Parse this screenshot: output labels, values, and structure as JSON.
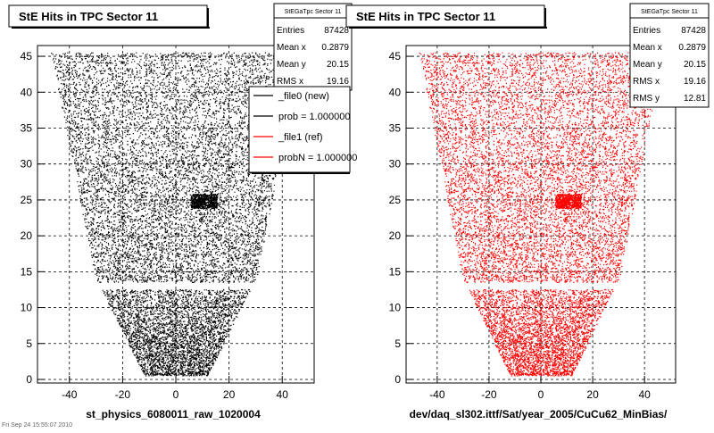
{
  "canvas_footer": {
    "stamp": "Fri Sep 24 15:55:07 2010"
  },
  "chart_data": [
    {
      "type": "scatter",
      "title": "StE Hits in TPC Sector 11",
      "xlabel": "st_physics_6080011_raw_1020004",
      "ylabel": "",
      "xlim": [
        -52,
        52
      ],
      "ylim": [
        -0.5,
        46.5
      ],
      "xticks": [
        -40,
        -20,
        0,
        20,
        40
      ],
      "yticks": [
        0,
        5,
        10,
        15,
        20,
        25,
        30,
        35,
        40,
        45
      ],
      "grid": true,
      "marker_color": "#000000",
      "stats": {
        "name": "StEGaTpc Sector 11",
        "rows": [
          {
            "label": "Entries",
            "value": "87428"
          },
          {
            "label": "Mean x",
            "value": "0.2879"
          },
          {
            "label": "Mean y",
            "value": "20.15"
          },
          {
            "label": "RMS x",
            "value": "19.16"
          }
        ]
      },
      "legend": {
        "placement": "top-right",
        "entries": [
          {
            "label": "_file0 (new)",
            "color": "#000000"
          },
          {
            "label": "prob = 1.000000",
            "color": "#000000"
          },
          {
            "label": "_file1 (ref)",
            "color": "#ff0000"
          },
          {
            "label": "probN = 1.000000",
            "color": "#ff0000"
          }
        ]
      },
      "hit_region": {
        "upper": {
          "y_range": [
            13.5,
            45.5
          ],
          "x_half_width_bottom": 30,
          "x_half_width_top": 47
        },
        "lower": {
          "y_range": [
            0.5,
            12.5
          ],
          "x_half_width_bottom": 12,
          "x_half_width_top": 28
        },
        "dense_block": {
          "x_range": [
            5.5,
            15.5
          ],
          "y_range": [
            23.8,
            25.8
          ]
        }
      },
      "entries": 87428
    },
    {
      "type": "scatter",
      "title": "StE Hits in TPC Sector 11",
      "xlabel": "dev/daq_sl302.ittf/Sat/year_2005/CuCu62_MinBias/",
      "ylabel": "",
      "xlim": [
        -52,
        52
      ],
      "ylim": [
        -0.5,
        46.5
      ],
      "xticks": [
        -40,
        -20,
        0,
        20,
        40
      ],
      "yticks": [
        0,
        5,
        10,
        15,
        20,
        25,
        30,
        35,
        40,
        45
      ],
      "grid": true,
      "marker_color": "#ff0000",
      "stats": {
        "name": "StEGaTpc Sector 11",
        "rows": [
          {
            "label": "Entries",
            "value": "87428"
          },
          {
            "label": "Mean x",
            "value": "0.2879"
          },
          {
            "label": "Mean y",
            "value": "20.15"
          },
          {
            "label": "RMS x",
            "value": "19.16"
          },
          {
            "label": "RMS y",
            "value": "12.81"
          }
        ]
      },
      "hit_region": {
        "upper": {
          "y_range": [
            13.5,
            45.5
          ],
          "x_half_width_bottom": 30,
          "x_half_width_top": 47
        },
        "lower": {
          "y_range": [
            0.5,
            12.5
          ],
          "x_half_width_bottom": 12,
          "x_half_width_top": 28
        },
        "dense_block": {
          "x_range": [
            5.5,
            15.5
          ],
          "y_range": [
            23.8,
            25.8
          ]
        }
      },
      "entries": 87428
    }
  ]
}
